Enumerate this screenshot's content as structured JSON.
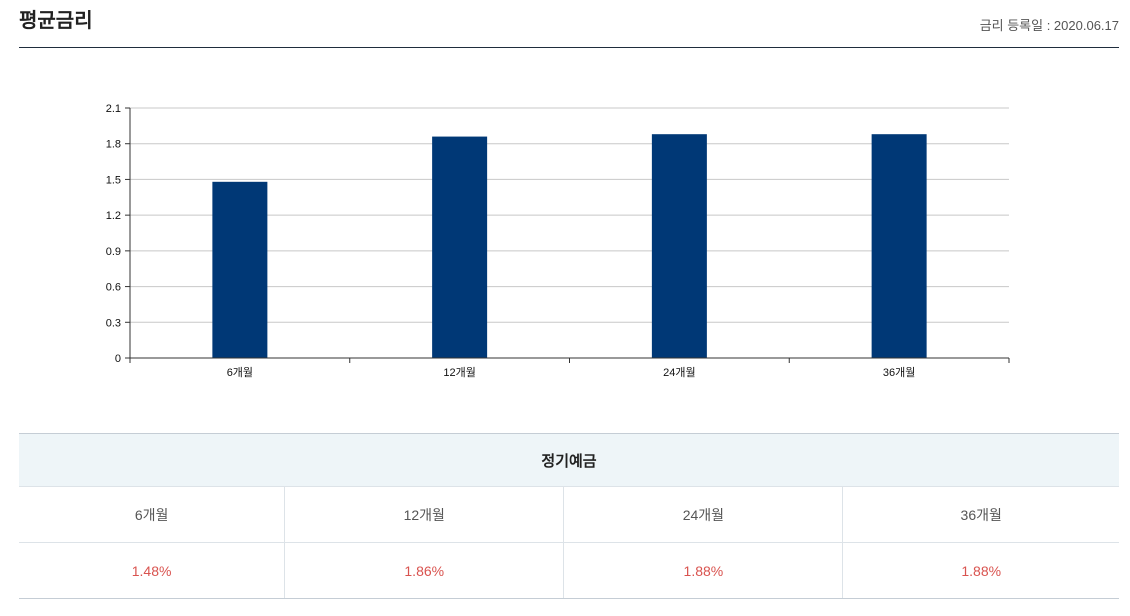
{
  "header": {
    "title": "평균금리",
    "registration_date": "금리 등록일 : 2020.06.17"
  },
  "chart_data": {
    "type": "bar",
    "categories": [
      "6개월",
      "12개월",
      "24개월",
      "36개월"
    ],
    "values": [
      1.48,
      1.86,
      1.88,
      1.88
    ],
    "yticks": [
      "0",
      "0.3",
      "0.6",
      "0.9",
      "1.2",
      "1.5",
      "1.8",
      "2.1"
    ],
    "ylim": [
      0,
      2.1
    ],
    "grid": true,
    "bar_color": "#003876"
  },
  "table": {
    "group_header": "정기예금",
    "periods": [
      "6개월",
      "12개월",
      "24개월",
      "36개월"
    ],
    "rates": [
      "1.48%",
      "1.86%",
      "1.88%",
      "1.88%"
    ],
    "rate_color": "#d9534f"
  }
}
